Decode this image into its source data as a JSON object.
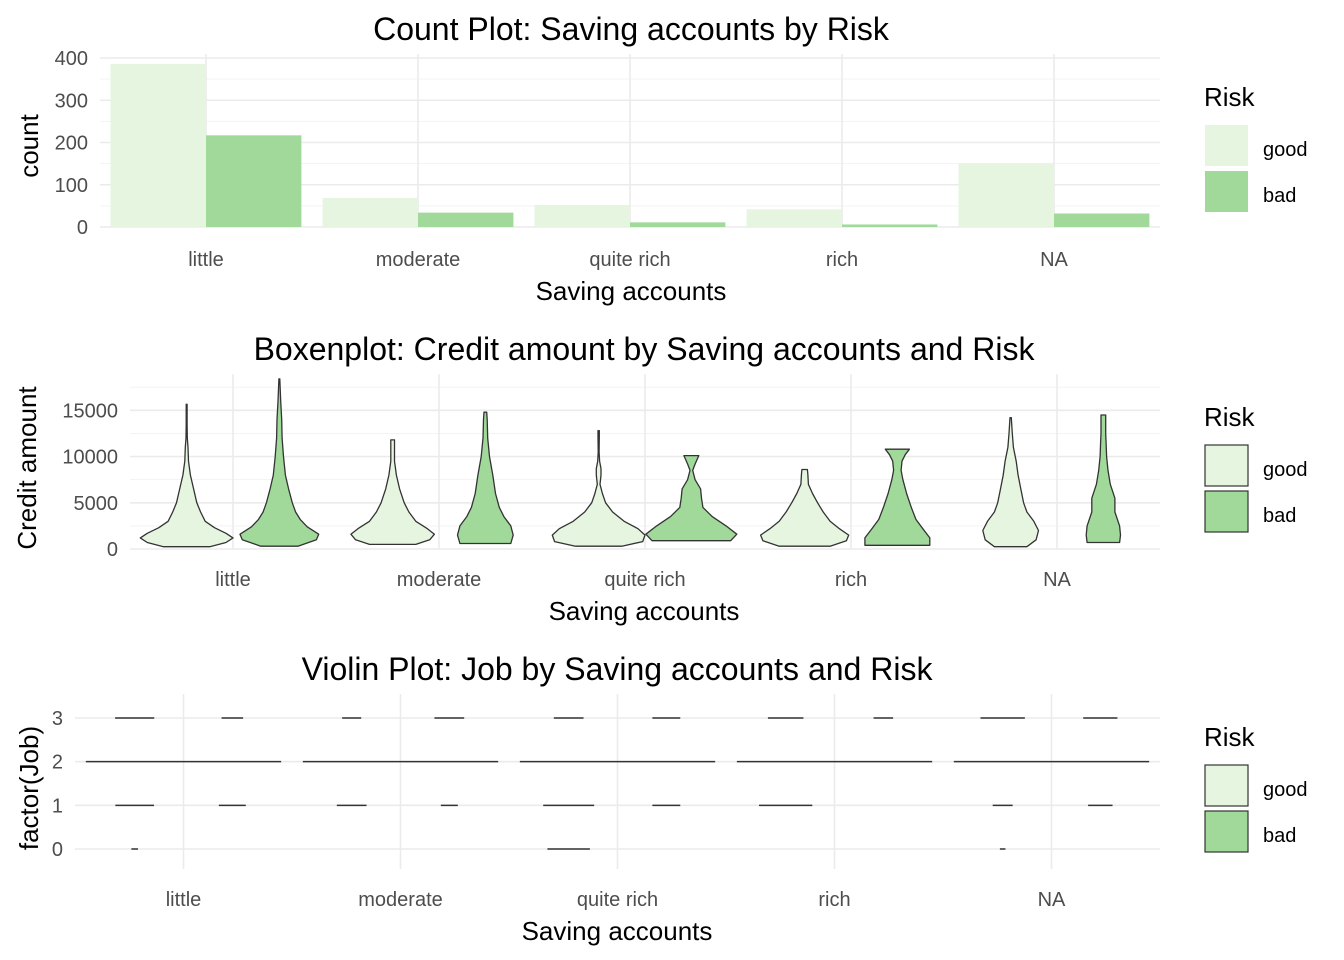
{
  "colors": {
    "good": "#e5f5e0",
    "bad": "#a1d99b",
    "outline": "#333333"
  },
  "chart_data": [
    {
      "type": "bar",
      "title": "Count Plot: Saving accounts by Risk",
      "xlabel": "Saving accounts",
      "ylabel": "count",
      "categories": [
        "little",
        "moderate",
        "quite rich",
        "rich",
        "NA"
      ],
      "series": [
        {
          "name": "good",
          "values": [
            386,
            69,
            52,
            42,
            151
          ]
        },
        {
          "name": "bad",
          "values": [
            217,
            34,
            11,
            6,
            32
          ]
        }
      ],
      "ylim": [
        0,
        400
      ],
      "yticks": [
        0,
        100,
        200,
        300,
        400
      ],
      "legend": {
        "title": "Risk",
        "position": "right",
        "entries": [
          "good",
          "bad"
        ]
      },
      "grid": true
    },
    {
      "type": "violin",
      "title": "Boxenplot: Credit amount by Saving accounts and Risk",
      "xlabel": "Saving accounts",
      "ylabel": "Credit amount",
      "categories": [
        "little",
        "moderate",
        "quite rich",
        "rich",
        "NA"
      ],
      "ylim": [
        0,
        18500
      ],
      "yticks": [
        0,
        5000,
        10000,
        15000
      ],
      "ytick_labels": [
        "0",
        "5000",
        "10000",
        "15000"
      ],
      "series": [
        {
          "name": "good",
          "groups": [
            {
              "min": 250,
              "max": 15650,
              "profile": [
                [
                  250,
                  0.5
                ],
                [
                  700,
                  0.85
                ],
                [
                  1200,
                  1.0
                ],
                [
                  1700,
                  0.85
                ],
                [
                  2300,
                  0.6
                ],
                [
                  3000,
                  0.4
                ],
                [
                  4000,
                  0.3
                ],
                [
                  5000,
                  0.22
                ],
                [
                  6500,
                  0.15
                ],
                [
                  8000,
                  0.08
                ],
                [
                  9500,
                  0.04
                ],
                [
                  11000,
                  0.03
                ],
                [
                  12000,
                  0.015
                ],
                [
                  13500,
                  0.01
                ],
                [
                  15650,
                  0.01
                ]
              ]
            },
            {
              "min": 500,
              "max": 11800,
              "profile": [
                [
                  500,
                  0.5
                ],
                [
                  1000,
                  0.8
                ],
                [
                  1600,
                  0.9
                ],
                [
                  2200,
                  0.75
                ],
                [
                  3000,
                  0.5
                ],
                [
                  4000,
                  0.35
                ],
                [
                  5000,
                  0.25
                ],
                [
                  6500,
                  0.15
                ],
                [
                  8000,
                  0.08
                ],
                [
                  9500,
                  0.04
                ],
                [
                  10700,
                  0.04
                ],
                [
                  11800,
                  0.04
                ]
              ]
            },
            {
              "min": 300,
              "max": 12800,
              "profile": [
                [
                  300,
                  0.5
                ],
                [
                  800,
                  0.95
                ],
                [
                  1500,
                  1.0
                ],
                [
                  2200,
                  0.85
                ],
                [
                  3000,
                  0.55
                ],
                [
                  4000,
                  0.3
                ],
                [
                  5000,
                  0.15
                ],
                [
                  6000,
                  0.08
                ],
                [
                  7000,
                  0.03
                ],
                [
                  8000,
                  0.05
                ],
                [
                  8700,
                  0.05
                ],
                [
                  9500,
                  0.02
                ],
                [
                  10500,
                  0.01
                ],
                [
                  12200,
                  0.015
                ],
                [
                  12800,
                  0.015
                ]
              ]
            },
            {
              "min": 300,
              "max": 8600,
              "profile": [
                [
                  300,
                  0.55
                ],
                [
                  900,
                  0.9
                ],
                [
                  1500,
                  0.95
                ],
                [
                  2200,
                  0.75
                ],
                [
                  3000,
                  0.55
                ],
                [
                  4000,
                  0.4
                ],
                [
                  5000,
                  0.28
                ],
                [
                  6000,
                  0.17
                ],
                [
                  7000,
                  0.08
                ],
                [
                  8000,
                  0.07
                ],
                [
                  8600,
                  0.06
                ]
              ]
            },
            {
              "min": 250,
              "max": 14200,
              "profile": [
                [
                  250,
                  0.35
                ],
                [
                  1000,
                  0.55
                ],
                [
                  2000,
                  0.6
                ],
                [
                  3000,
                  0.5
                ],
                [
                  4000,
                  0.35
                ],
                [
                  5000,
                  0.28
                ],
                [
                  6500,
                  0.22
                ],
                [
                  8000,
                  0.16
                ],
                [
                  9500,
                  0.12
                ],
                [
                  11000,
                  0.06
                ],
                [
                  12500,
                  0.035
                ],
                [
                  14200,
                  0.015
                ]
              ]
            }
          ]
        },
        {
          "name": "bad",
          "groups": [
            {
              "min": 300,
              "max": 18400,
              "profile": [
                [
                  300,
                  0.4
                ],
                [
                  1000,
                  0.8
                ],
                [
                  1600,
                  0.85
                ],
                [
                  2400,
                  0.6
                ],
                [
                  3200,
                  0.45
                ],
                [
                  4000,
                  0.35
                ],
                [
                  5000,
                  0.28
                ],
                [
                  6500,
                  0.2
                ],
                [
                  8000,
                  0.13
                ],
                [
                  10000,
                  0.09
                ],
                [
                  12000,
                  0.06
                ],
                [
                  14000,
                  0.05
                ],
                [
                  16000,
                  0.03
                ],
                [
                  18400,
                  0.01
                ]
              ]
            },
            {
              "min": 600,
              "max": 14800,
              "profile": [
                [
                  600,
                  0.55
                ],
                [
                  1500,
                  0.6
                ],
                [
                  2500,
                  0.55
                ],
                [
                  3500,
                  0.4
                ],
                [
                  4500,
                  0.3
                ],
                [
                  6000,
                  0.22
                ],
                [
                  8000,
                  0.16
                ],
                [
                  10000,
                  0.09
                ],
                [
                  12000,
                  0.05
                ],
                [
                  14000,
                  0.04
                ],
                [
                  14800,
                  0.03
                ]
              ]
            },
            {
              "min": 900,
              "max": 10100,
              "profile": [
                [
                  900,
                  0.85
                ],
                [
                  1600,
                  0.98
                ],
                [
                  2500,
                  0.75
                ],
                [
                  3500,
                  0.45
                ],
                [
                  4500,
                  0.25
                ],
                [
                  5500,
                  0.22
                ],
                [
                  6500,
                  0.2
                ],
                [
                  7500,
                  0.08
                ],
                [
                  8500,
                  0.03
                ],
                [
                  9200,
                  0.08
                ],
                [
                  10100,
                  0.16
                ]
              ]
            },
            {
              "min": 400,
              "max": 10800,
              "profile": [
                [
                  400,
                  0.7
                ],
                [
                  1200,
                  0.7
                ],
                [
                  2200,
                  0.55
                ],
                [
                  3200,
                  0.4
                ],
                [
                  4500,
                  0.3
                ],
                [
                  6000,
                  0.2
                ],
                [
                  7500,
                  0.12
                ],
                [
                  8500,
                  0.08
                ],
                [
                  9500,
                  0.1
                ],
                [
                  10200,
                  0.17
                ],
                [
                  10800,
                  0.26
                ]
              ]
            },
            {
              "min": 700,
              "max": 14500,
              "profile": [
                [
                  700,
                  0.35
                ],
                [
                  1500,
                  0.37
                ],
                [
                  2500,
                  0.35
                ],
                [
                  4000,
                  0.25
                ],
                [
                  5500,
                  0.25
                ],
                [
                  7000,
                  0.15
                ],
                [
                  8500,
                  0.1
                ],
                [
                  10000,
                  0.07
                ],
                [
                  11500,
                  0.06
                ],
                [
                  12500,
                  0.05
                ],
                [
                  13500,
                  0.05
                ],
                [
                  14500,
                  0.05
                ]
              ]
            }
          ]
        }
      ],
      "legend": {
        "title": "Risk",
        "position": "right",
        "entries": [
          "good",
          "bad"
        ]
      },
      "grid": true
    },
    {
      "type": "violin",
      "title": "Violin Plot: Job by Saving accounts and Risk",
      "xlabel": "Saving accounts",
      "ylabel": "factor(Job)",
      "categories": [
        "little",
        "moderate",
        "quite rich",
        "rich",
        "NA"
      ],
      "yticks": [
        0,
        1,
        2,
        3
      ],
      "ytick_labels": [
        "0",
        "1",
        "2",
        "3"
      ],
      "levels": [
        "0",
        "1",
        "2",
        "3"
      ],
      "series": [
        {
          "name": "good",
          "counts": [
            [
              14,
              82,
              207,
              83
            ],
            [
              0,
              14,
              46,
              9
            ],
            [
              10,
              12,
              23,
              7
            ],
            [
              0,
              12,
              22,
              8
            ],
            [
              5,
              18,
              88,
              40
            ]
          ]
        },
        {
          "name": "bad",
          "counts": [
            [
              0,
              40,
              145,
              32
            ],
            [
              0,
              4,
              23,
              7
            ],
            [
              0,
              2,
              7,
              2
            ],
            [
              0,
              0,
              5,
              1
            ],
            [
              0,
              5,
              20,
              7
            ]
          ]
        }
      ],
      "legend": {
        "title": "Risk",
        "position": "right",
        "entries": [
          "good",
          "bad"
        ]
      },
      "grid": true
    }
  ]
}
